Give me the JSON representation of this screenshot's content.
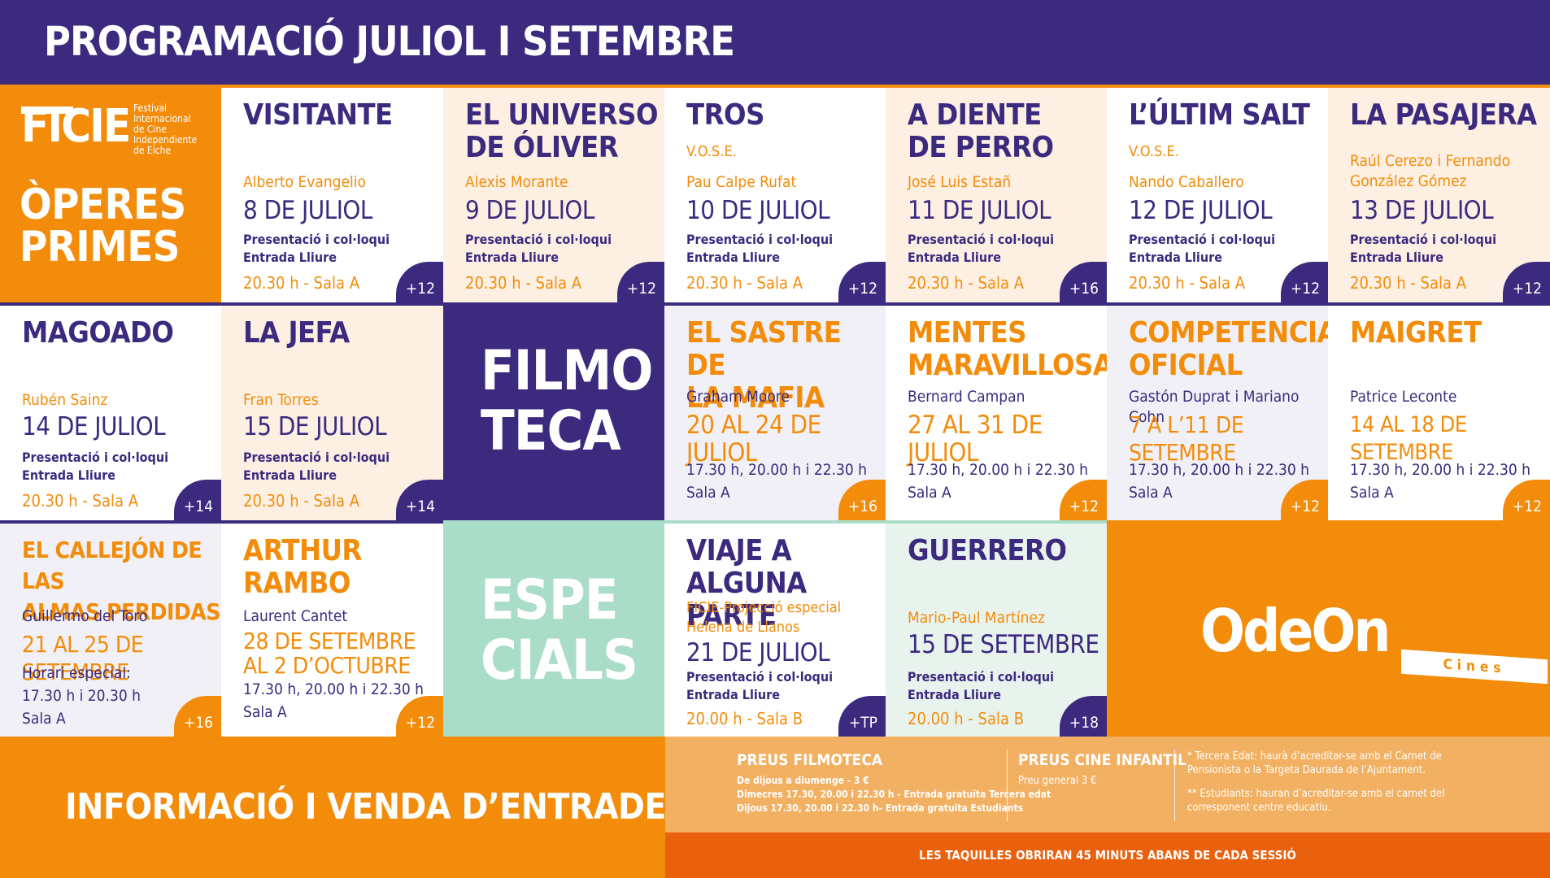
{
  "header": {
    "title": "PROGRAMACIÓ JULIOL I SETEMBRE"
  },
  "operes": {
    "ficie_logo": "FICIE",
    "ficie_subtitle": "Festival\nInternacional\nde Cine\nIndependiente\nde Elche",
    "title": "ÒPERES\nPRIMES",
    "films": [
      {
        "title": "VISITANTE",
        "director": "Alberto Evangelio",
        "date": "8 DE JULIOL",
        "info": "Presentació i col·loqui\nEntrada Lliure",
        "session": "20.30 h - Sala A",
        "rating": "+12"
      },
      {
        "title": "EL UNIVERSO\nDE ÓLIVER",
        "director": "Alexis Morante",
        "date": "9 DE JULIOL",
        "info": "Presentació i col·loqui\nEntrada Lliure",
        "session": "20.30 h - Sala A",
        "rating": "+12"
      },
      {
        "title": "TROS",
        "note": "V.O.S.E.",
        "director": "Pau Calpe Rufat",
        "date": "10 DE JULIOL",
        "info": "Presentació i col·loqui\nEntrada Lliure",
        "session": "20.30 h - Sala A",
        "rating": "+12"
      },
      {
        "title": "A DIENTE\nDE PERRO",
        "director": "José Luis Estañ",
        "date": "11 DE JULIOL",
        "info": "Presentació i col·loqui\nEntrada Lliure",
        "session": "20.30 h - Sala A",
        "rating": "+16"
      },
      {
        "title": "L’ÚLTIM SALT",
        "note": "V.O.S.E.",
        "director": "Nando Caballero",
        "date": "12 DE JULIOL",
        "info": "Presentació i col·loqui\nEntrada Lliure",
        "session": "20.30 h - Sala A",
        "rating": "+12"
      },
      {
        "title": "LA PASAJERA",
        "director": "Raúl Cerezo i Fernando\nGonzález Gómez",
        "date": "13 DE JULIOL",
        "info": "Presentació i col·loqui\nEntrada Lliure",
        "session": "20.30 h - Sala A",
        "rating": "+12"
      },
      {
        "title": "MAGOADO",
        "director": "Rubén Sainz",
        "date": "14 DE JULIOL",
        "info": "Presentació i col·loqui\nEntrada Lliure",
        "session": "20.30 h - Sala A",
        "rating": "+14"
      },
      {
        "title": "LA JEFA",
        "director": "Fran Torres",
        "date": "15 DE JULIOL",
        "info": "Presentació i col·loqui\nEntrada Lliure",
        "session": "20.30 h - Sala A",
        "rating": "+14"
      }
    ]
  },
  "filmoteca": {
    "title": "FILMO\nTECA",
    "films": [
      {
        "title": "EL SASTRE DE\nLA MAFIA",
        "director": "Graham Moore",
        "date": "20 AL 24 DE JULIOL",
        "times": "17.30 h, 20.00 h i 22.30 h\nSala A",
        "rating": "+16"
      },
      {
        "title": "MENTES\nMARAVILLOSAS",
        "director": "Bernard Campan",
        "date": "27 AL 31 DE JULIOL",
        "times": "17.30 h, 20.00 h i 22.30 h\nSala A",
        "rating": "+12"
      },
      {
        "title": "COMPETENCIA\nOFICIAL",
        "director": "Gastón Duprat i Mariano Cohn",
        "date": "7 A L’11 DE SETEMBRE",
        "times": "17.30 h, 20.00 h i 22.30 h\nSala A",
        "rating": "+12"
      },
      {
        "title": "MAIGRET",
        "director": "Patrice Leconte",
        "date": "14 AL 18 DE SETEMBRE",
        "times": "17.30 h, 20.00 h i 22.30 h\nSala A",
        "rating": "+12"
      },
      {
        "title": "EL CALLEJÓN DE LAS\nALMAS PERDIDAS",
        "director": "Guillermo del Toro",
        "date": "21 AL 25 DE SETEMBRE",
        "times": "Horari especial:\n17.30 h i 20.30 h\nSala A",
        "rating": "+16"
      },
      {
        "title": "ARTHUR\nRAMBO",
        "director": "Laurent Cantet",
        "date": "28 DE SETEMBRE\nAL 2 D’OCTUBRE",
        "times": "17.30 h, 20.00 h i 22.30 h\nSala A",
        "rating": "+12"
      }
    ]
  },
  "especials": {
    "title": "ESPE\nCIALS",
    "films": [
      {
        "title": "VIAJE A\nALGUNA PARTE",
        "director": "FICIE-Projecció especial\nHelena de Llanos",
        "date": "21 DE JULIOL",
        "info": "Presentació i col·loqui\nEntrada Lliure",
        "session": "20.00 h - Sala B",
        "rating": "+TP"
      },
      {
        "title": "GUERRERO",
        "director": "Mario-Paul Martínez",
        "date": "15 DE SETEMBRE",
        "info": "Presentació i col·loqui\nEntrada Lliure",
        "session": "20.00 h - Sala B",
        "rating": "+18"
      }
    ]
  },
  "odeon": {
    "logo": "OdeOn",
    "cines": "Cines"
  },
  "footer": {
    "info_title": "INFORMACIÓ I VENDA D’ENTRADES",
    "preus_filmoteca": {
      "title": "PREUS FILMOTECA",
      "lines": "De dijous a diumenge - 3 €\nDimecres 17.30, 20.00 i 22.30 h - Entrada gratuïta Tercera edat\nDijous 17.30, 20.00 i 22.30 h- Entrada gratuïta Estudiants"
    },
    "preus_infantil": {
      "title": "PREUS CINE INFANTIL",
      "lines": "Preu general 3 €"
    },
    "notes": {
      "n1": "* Tercera Edat: haurà d’acreditar-se amb el Carnet de\nPensionista o la Targeta Daurada de l’Ajuntament.",
      "n2": "** Estudiants: hauran d’acreditar-se amb el carnet del\ncorresponent centre educatiu."
    },
    "taquilles": "LES TAQUILLES OBRIRAN 45 MINUTS ABANS DE CADA SESSIÓ"
  },
  "colors": {
    "purple": "#3b2a7e",
    "orange": "#f28c0a",
    "mint": "#a9ddc7",
    "cream": "#fdf0e3",
    "dark_orange": "#e9600d"
  }
}
